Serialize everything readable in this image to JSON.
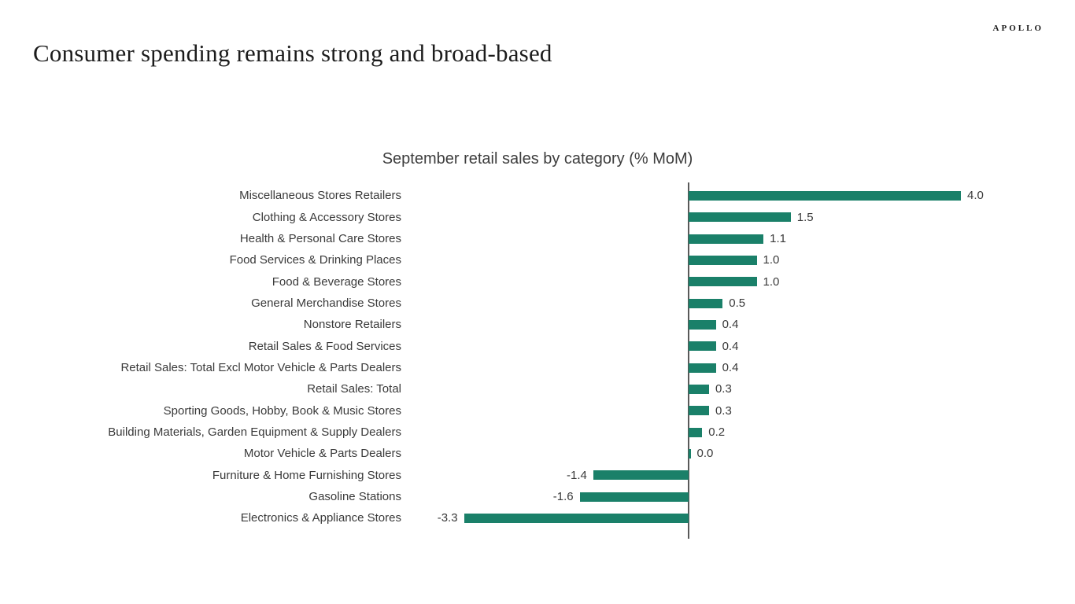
{
  "page": {
    "title": "Consumer spending remains strong and broad-based",
    "logo": "APOLLO"
  },
  "chart_data": {
    "type": "bar",
    "orientation": "horizontal",
    "title": "September retail sales by category (% MoM)",
    "categories": [
      "Miscellaneous Stores Retailers",
      "Clothing & Accessory Stores",
      "Health & Personal Care Stores",
      "Food Services & Drinking Places",
      "Food & Beverage Stores",
      "General Merchandise Stores",
      "Nonstore Retailers",
      "Retail Sales & Food Services",
      "Retail Sales: Total Excl Motor Vehicle & Parts Dealers",
      "Retail Sales: Total",
      "Sporting Goods, Hobby, Book & Music Stores",
      "Building Materials, Garden Equipment & Supply Dealers",
      "Motor Vehicle & Parts Dealers",
      "Furniture & Home Furnishing Stores",
      "Gasoline Stations",
      "Electronics & Appliance Stores"
    ],
    "values": [
      4.0,
      1.5,
      1.1,
      1.0,
      1.0,
      0.5,
      0.4,
      0.4,
      0.4,
      0.3,
      0.3,
      0.2,
      0.0,
      -1.4,
      -1.6,
      -3.3
    ],
    "data_labels": [
      "4.0",
      "1.5",
      "1.1",
      "1.0",
      "1.0",
      "0.5",
      "0.4",
      "0.4",
      "0.4",
      "0.3",
      "0.3",
      "0.2",
      "0.0",
      "-1.4",
      "-1.6",
      "-3.3"
    ],
    "xlabel": "",
    "ylabel": "",
    "xlim": [
      -4.0,
      4.5
    ],
    "grid": false,
    "legend": false,
    "data_labels_shown": true,
    "bar_color": "#1a8069",
    "axis_color": "#595959",
    "label_color": "#3a3a3a"
  }
}
